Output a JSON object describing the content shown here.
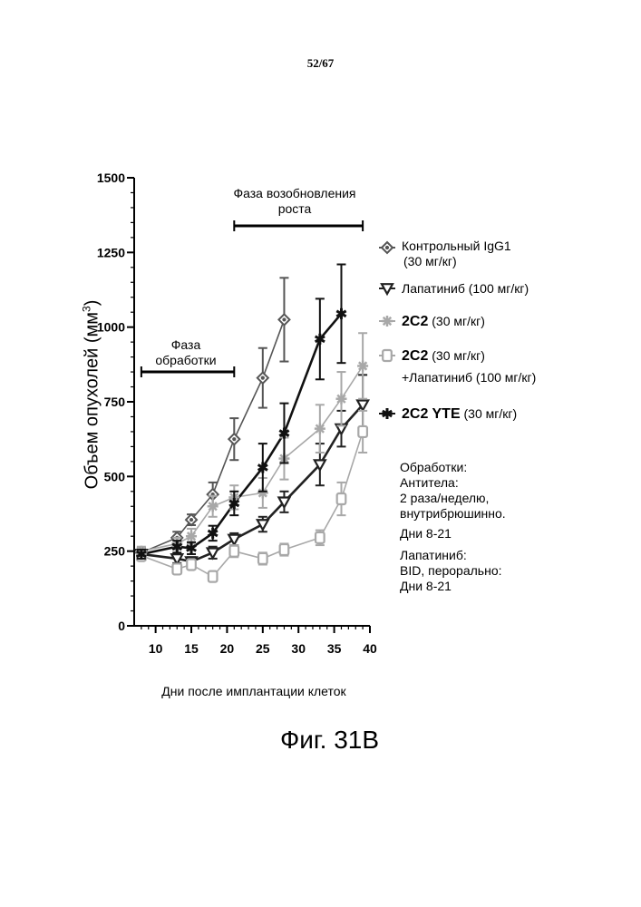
{
  "page_number": "52/67",
  "figure_caption": "Фиг. 31В",
  "colors": {
    "black": "#111111",
    "dark_gray": "#555555",
    "mid_gray": "#8a8a8a",
    "light_gray": "#a8a8a8"
  },
  "chart_data": {
    "type": "line",
    "title": "",
    "xlabel": "Дни после имплантации клеток",
    "ylabel": "Объем опухолей (мм³)",
    "ylabel_main": "Объем опухолей (мм",
    "ylabel_sup": "3",
    "ylabel_close": ")",
    "xlim": [
      7,
      40
    ],
    "ylim": [
      0,
      1500
    ],
    "xticks": [
      "10",
      "15",
      "20",
      "25",
      "30",
      "35",
      "40"
    ],
    "yticks": [
      "0",
      "250",
      "500",
      "750",
      "1000",
      "1250",
      "1500"
    ],
    "phase_treatment": {
      "label_line1": "Фаза",
      "label_line2": "обработки",
      "x_range": [
        8,
        21
      ]
    },
    "phase_regrowth": {
      "label_line1": "Фаза возобновления",
      "label_line2": "роста",
      "x_range": [
        21,
        39
      ]
    },
    "series": [
      {
        "name": "Контрольный IgG1",
        "legend_line1": "Контрольный IgG1",
        "legend_line2": "(30 мг/кг)",
        "marker": "diamond",
        "color": "#555555",
        "points": [
          {
            "x": 8,
            "y": 245,
            "err": 15
          },
          {
            "x": 13,
            "y": 295,
            "err": 20
          },
          {
            "x": 15,
            "y": 355,
            "err": 18
          },
          {
            "x": 18,
            "y": 440,
            "err": 40
          },
          {
            "x": 21,
            "y": 625,
            "err": 70
          },
          {
            "x": 25,
            "y": 830,
            "err": 100
          },
          {
            "x": 28,
            "y": 1025,
            "err": 140
          }
        ]
      },
      {
        "name": "Лапатиниб (100 мг/кг)",
        "legend_line1": "Лапатиниб (100 мг/кг)",
        "marker": "triangle",
        "color": "#222222",
        "points": [
          {
            "x": 8,
            "y": 240,
            "err": 15
          },
          {
            "x": 13,
            "y": 225,
            "err": 15
          },
          {
            "x": 15,
            "y": 215,
            "err": 15
          },
          {
            "x": 18,
            "y": 245,
            "err": 20
          },
          {
            "x": 21,
            "y": 290,
            "err": 20
          },
          {
            "x": 25,
            "y": 340,
            "err": 25
          },
          {
            "x": 28,
            "y": 415,
            "err": 35
          },
          {
            "x": 33,
            "y": 540,
            "err": 70
          },
          {
            "x": 36,
            "y": 660,
            "err": 60
          },
          {
            "x": 39,
            "y": 740,
            "err": 100
          }
        ]
      },
      {
        "name": "2C2 (30 мг/кг)",
        "legend_sym": "2C2",
        "legend_line1": " (30 мг/кг)",
        "marker": "star",
        "color": "#a8a8a8",
        "points": [
          {
            "x": 8,
            "y": 250,
            "err": 15
          },
          {
            "x": 13,
            "y": 275,
            "err": 20
          },
          {
            "x": 15,
            "y": 300,
            "err": 25
          },
          {
            "x": 18,
            "y": 400,
            "err": 35
          },
          {
            "x": 21,
            "y": 430,
            "err": 40
          },
          {
            "x": 25,
            "y": 445,
            "err": 50
          },
          {
            "x": 28,
            "y": 560,
            "err": 70
          },
          {
            "x": 33,
            "y": 660,
            "err": 80
          },
          {
            "x": 36,
            "y": 760,
            "err": 90
          },
          {
            "x": 39,
            "y": 870,
            "err": 110
          }
        ]
      },
      {
        "name": "2C2 (30 мг/кг) +Лапатиниб (100 мг/кг)",
        "legend_sym": "2C2",
        "legend_line1": " (30 мг/кг)",
        "legend_line2": "+Лапатиниб (100 мг/кг)",
        "marker": "square",
        "color": "#a8a8a8",
        "points": [
          {
            "x": 8,
            "y": 235,
            "err": 15
          },
          {
            "x": 13,
            "y": 190,
            "err": 15
          },
          {
            "x": 15,
            "y": 205,
            "err": 15
          },
          {
            "x": 18,
            "y": 165,
            "err": 15
          },
          {
            "x": 21,
            "y": 250,
            "err": 20
          },
          {
            "x": 25,
            "y": 225,
            "err": 20
          },
          {
            "x": 28,
            "y": 255,
            "err": 20
          },
          {
            "x": 33,
            "y": 295,
            "err": 25
          },
          {
            "x": 36,
            "y": 425,
            "err": 55
          },
          {
            "x": 39,
            "y": 650,
            "err": 70
          }
        ]
      },
      {
        "name": "2C2 YTE (30 мг/кг)",
        "legend_sym": "2C2 YTE",
        "legend_line1": " (30 мг/кг)",
        "marker": "asterisk",
        "color": "#111111",
        "points": [
          {
            "x": 8,
            "y": 240,
            "err": 15
          },
          {
            "x": 13,
            "y": 265,
            "err": 20
          },
          {
            "x": 15,
            "y": 260,
            "err": 20
          },
          {
            "x": 18,
            "y": 310,
            "err": 25
          },
          {
            "x": 21,
            "y": 410,
            "err": 40
          },
          {
            "x": 25,
            "y": 530,
            "err": 80
          },
          {
            "x": 28,
            "y": 645,
            "err": 100
          },
          {
            "x": 33,
            "y": 960,
            "err": 135
          },
          {
            "x": 36,
            "y": 1045,
            "err": 165
          }
        ]
      }
    ],
    "notes": {
      "line1": "Обработки:",
      "line2": "Антитела:",
      "line3": "2 раза/неделю,",
      "line4": "внутрибрюшинно.",
      "line5": "Дни  8-21",
      "line6": "Лапатиниб:",
      "line7": "BID, перорально:",
      "line8": "Дни 8-21"
    }
  }
}
